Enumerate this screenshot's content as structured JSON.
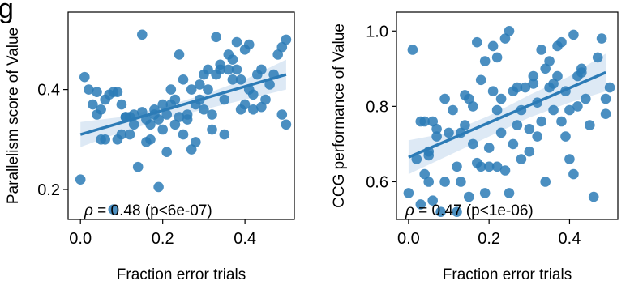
{
  "panel_label": "g",
  "chart_data": [
    {
      "type": "scatter",
      "title": "",
      "xlabel": "Fraction error trials",
      "ylabel": "Parallelism score of Value",
      "xlim": [
        -0.03,
        0.52
      ],
      "ylim": [
        0.14,
        0.555
      ],
      "xticks": [
        0.0,
        0.2,
        0.4
      ],
      "xtick_labels": [
        "0.0",
        "0.2",
        "0.4"
      ],
      "yticks": [
        0.2,
        0.4
      ],
      "ytick_labels": [
        "0.2",
        "0.4"
      ],
      "grid": false,
      "annotation": {
        "rho": "ρ",
        "text": " = 0.48 (p<6e-07)"
      },
      "color": "#2c7bb6",
      "band_color": "#c6dbef",
      "regression": {
        "x": [
          0.0,
          0.5
        ],
        "y": [
          0.31,
          0.43
        ]
      },
      "band": {
        "x": [
          0.0,
          0.1,
          0.2,
          0.3,
          0.4,
          0.5
        ],
        "upper": [
          0.335,
          0.345,
          0.365,
          0.39,
          0.42,
          0.46
        ],
        "lower": [
          0.285,
          0.315,
          0.34,
          0.36,
          0.38,
          0.4
        ]
      },
      "points": [
        [
          0.0,
          0.22
        ],
        [
          0.01,
          0.425
        ],
        [
          0.02,
          0.4
        ],
        [
          0.03,
          0.37
        ],
        [
          0.04,
          0.35
        ],
        [
          0.04,
          0.395
        ],
        [
          0.05,
          0.36
        ],
        [
          0.06,
          0.3
        ],
        [
          0.06,
          0.38
        ],
        [
          0.07,
          0.39
        ],
        [
          0.08,
          0.395
        ],
        [
          0.08,
          0.16
        ],
        [
          0.09,
          0.395
        ],
        [
          0.09,
          0.3
        ],
        [
          0.1,
          0.31
        ],
        [
          0.1,
          0.37
        ],
        [
          0.11,
          0.345
        ],
        [
          0.12,
          0.345
        ],
        [
          0.12,
          0.31
        ],
        [
          0.13,
          0.33
        ],
        [
          0.13,
          0.35
        ],
        [
          0.14,
          0.245
        ],
        [
          0.15,
          0.355
        ],
        [
          0.15,
          0.51
        ],
        [
          0.16,
          0.295
        ],
        [
          0.16,
          0.34
        ],
        [
          0.17,
          0.3
        ],
        [
          0.17,
          0.33
        ],
        [
          0.18,
          0.36
        ],
        [
          0.18,
          0.35
        ],
        [
          0.19,
          0.34
        ],
        [
          0.19,
          0.205
        ],
        [
          0.2,
          0.37
        ],
        [
          0.2,
          0.32
        ],
        [
          0.21,
          0.275
        ],
        [
          0.21,
          0.35
        ],
        [
          0.22,
          0.37
        ],
        [
          0.23,
          0.33
        ],
        [
          0.23,
          0.38
        ],
        [
          0.24,
          0.47
        ],
        [
          0.24,
          0.345
        ],
        [
          0.25,
          0.31
        ],
        [
          0.25,
          0.42
        ],
        [
          0.26,
          0.34
        ],
        [
          0.26,
          0.35
        ],
        [
          0.27,
          0.4
        ],
        [
          0.27,
          0.28
        ],
        [
          0.28,
          0.37
        ],
        [
          0.28,
          0.295
        ],
        [
          0.29,
          0.41
        ],
        [
          0.29,
          0.38
        ],
        [
          0.3,
          0.43
        ],
        [
          0.31,
          0.44
        ],
        [
          0.31,
          0.4
        ],
        [
          0.32,
          0.35
        ],
        [
          0.32,
          0.32
        ],
        [
          0.33,
          0.505
        ],
        [
          0.33,
          0.43
        ],
        [
          0.34,
          0.45
        ],
        [
          0.34,
          0.44
        ],
        [
          0.35,
          0.38
        ],
        [
          0.35,
          0.31
        ],
        [
          0.36,
          0.44
        ],
        [
          0.36,
          0.47
        ],
        [
          0.37,
          0.46
        ],
        [
          0.37,
          0.42
        ],
        [
          0.38,
          0.495
        ],
        [
          0.38,
          0.44
        ],
        [
          0.39,
          0.42
        ],
        [
          0.39,
          0.36
        ],
        [
          0.4,
          0.48
        ],
        [
          0.4,
          0.37
        ],
        [
          0.41,
          0.49
        ],
        [
          0.41,
          0.4
        ],
        [
          0.42,
          0.36
        ],
        [
          0.42,
          0.39
        ],
        [
          0.43,
          0.43
        ],
        [
          0.44,
          0.44
        ],
        [
          0.45,
          0.38
        ],
        [
          0.46,
          0.41
        ],
        [
          0.47,
          0.43
        ],
        [
          0.48,
          0.47
        ],
        [
          0.49,
          0.485
        ],
        [
          0.49,
          0.35
        ],
        [
          0.5,
          0.5
        ],
        [
          0.5,
          0.33
        ],
        [
          0.05,
          0.3
        ],
        [
          0.11,
          0.345
        ],
        [
          0.22,
          0.4
        ],
        [
          0.3,
          0.36
        ],
        [
          0.44,
          0.365
        ]
      ]
    },
    {
      "type": "scatter",
      "title": "",
      "xlabel": "Fraction error trials",
      "ylabel": "CCG performance of Value",
      "xlim": [
        -0.03,
        0.52
      ],
      "ylim": [
        0.5,
        1.05
      ],
      "xticks": [
        0.0,
        0.2,
        0.4
      ],
      "xtick_labels": [
        "0.0",
        "0.2",
        "0.4"
      ],
      "yticks": [
        0.6,
        0.8,
        1.0
      ],
      "ytick_labels": [
        "0.6",
        "0.8",
        "1.0"
      ],
      "grid": false,
      "annotation": {
        "rho": "ρ",
        "text": " = 0.47 (p<1e-06)"
      },
      "color": "#2c7bb6",
      "band_color": "#c6dbef",
      "regression": {
        "x": [
          0.0,
          0.49
        ],
        "y": [
          0.665,
          0.89
        ]
      },
      "band": {
        "x": [
          0.0,
          0.1,
          0.2,
          0.3,
          0.4,
          0.49
        ],
        "upper": [
          0.71,
          0.73,
          0.775,
          0.83,
          0.88,
          0.94
        ],
        "lower": [
          0.62,
          0.67,
          0.72,
          0.77,
          0.81,
          0.84
        ]
      },
      "points": [
        [
          0.0,
          0.57
        ],
        [
          0.01,
          0.95
        ],
        [
          0.02,
          0.66
        ],
        [
          0.03,
          0.54
        ],
        [
          0.03,
          0.76
        ],
        [
          0.04,
          0.62
        ],
        [
          0.04,
          0.76
        ],
        [
          0.05,
          0.68
        ],
        [
          0.05,
          0.6
        ],
        [
          0.06,
          0.76
        ],
        [
          0.06,
          0.55
        ],
        [
          0.07,
          0.72
        ],
        [
          0.07,
          0.74
        ],
        [
          0.08,
          0.52
        ],
        [
          0.09,
          0.6
        ],
        [
          0.09,
          0.82
        ],
        [
          0.1,
          0.73
        ],
        [
          0.11,
          0.79
        ],
        [
          0.12,
          0.64
        ],
        [
          0.12,
          0.52
        ],
        [
          0.13,
          0.6
        ],
        [
          0.13,
          0.73
        ],
        [
          0.14,
          0.75
        ],
        [
          0.15,
          0.82
        ],
        [
          0.15,
          0.56
        ],
        [
          0.16,
          0.8
        ],
        [
          0.16,
          0.7
        ],
        [
          0.17,
          0.65
        ],
        [
          0.17,
          0.97
        ],
        [
          0.18,
          0.64
        ],
        [
          0.18,
          0.87
        ],
        [
          0.19,
          0.92
        ],
        [
          0.19,
          0.57
        ],
        [
          0.2,
          0.69
        ],
        [
          0.2,
          0.64
        ],
        [
          0.21,
          0.84
        ],
        [
          0.21,
          0.96
        ],
        [
          0.22,
          0.79
        ],
        [
          0.22,
          0.64
        ],
        [
          0.23,
          0.73
        ],
        [
          0.23,
          0.82
        ],
        [
          0.24,
          0.98
        ],
        [
          0.24,
          0.63
        ],
        [
          0.25,
          1.0
        ],
        [
          0.25,
          0.57
        ],
        [
          0.26,
          0.84
        ],
        [
          0.26,
          0.7
        ],
        [
          0.27,
          0.85
        ],
        [
          0.27,
          0.75
        ],
        [
          0.28,
          0.66
        ],
        [
          0.28,
          0.79
        ],
        [
          0.29,
          0.85
        ],
        [
          0.3,
          0.68
        ],
        [
          0.3,
          0.74
        ],
        [
          0.31,
          0.88
        ],
        [
          0.32,
          0.72
        ],
        [
          0.32,
          0.81
        ],
        [
          0.33,
          0.95
        ],
        [
          0.33,
          0.76
        ],
        [
          0.34,
          0.9
        ],
        [
          0.34,
          0.6
        ],
        [
          0.35,
          0.92
        ],
        [
          0.35,
          0.85
        ],
        [
          0.36,
          0.86
        ],
        [
          0.36,
          0.79
        ],
        [
          0.37,
          0.96
        ],
        [
          0.37,
          0.88
        ],
        [
          0.38,
          0.97
        ],
        [
          0.38,
          0.76
        ],
        [
          0.39,
          0.84
        ],
        [
          0.39,
          0.72
        ],
        [
          0.4,
          0.66
        ],
        [
          0.4,
          0.79
        ],
        [
          0.41,
          0.99
        ],
        [
          0.41,
          0.62
        ],
        [
          0.42,
          0.88
        ],
        [
          0.42,
          0.8
        ],
        [
          0.43,
          0.9
        ],
        [
          0.44,
          0.82
        ],
        [
          0.45,
          0.75
        ],
        [
          0.46,
          0.56
        ],
        [
          0.47,
          0.93
        ],
        [
          0.48,
          0.98
        ],
        [
          0.49,
          0.82
        ],
        [
          0.49,
          0.78
        ],
        [
          0.5,
          0.85
        ],
        [
          0.05,
          0.67
        ],
        [
          0.14,
          0.83
        ],
        [
          0.22,
          0.93
        ],
        [
          0.31,
          0.86
        ],
        [
          0.43,
          0.89
        ]
      ]
    }
  ]
}
